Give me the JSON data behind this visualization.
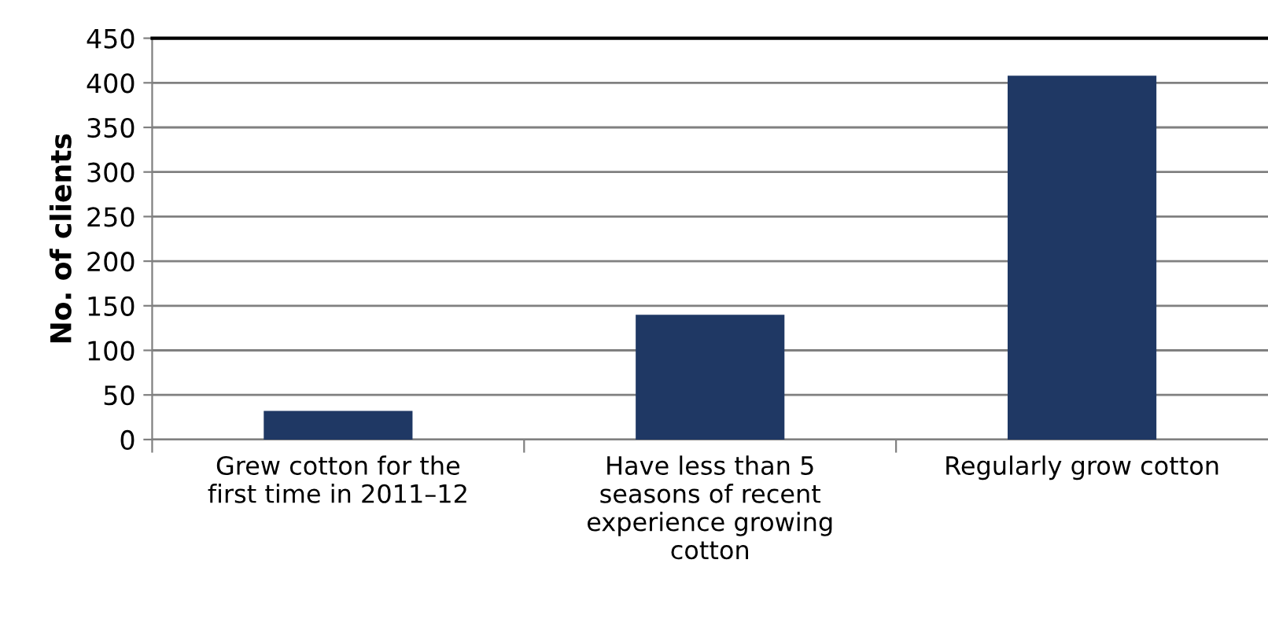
{
  "chart_data": {
    "type": "bar",
    "ylabel": "No. of clients",
    "categories": [
      "Grew cotton for the first time in 2011–12",
      "Have less than 5 seasons of recent experience growing cotton",
      "Regularly grow cotton"
    ],
    "values": [
      32,
      140,
      408
    ],
    "color": "#1f3864",
    "ylim": [
      0,
      450
    ],
    "yticks": [
      0,
      50,
      100,
      150,
      200,
      250,
      300,
      350,
      400,
      450
    ],
    "grid": "y"
  }
}
